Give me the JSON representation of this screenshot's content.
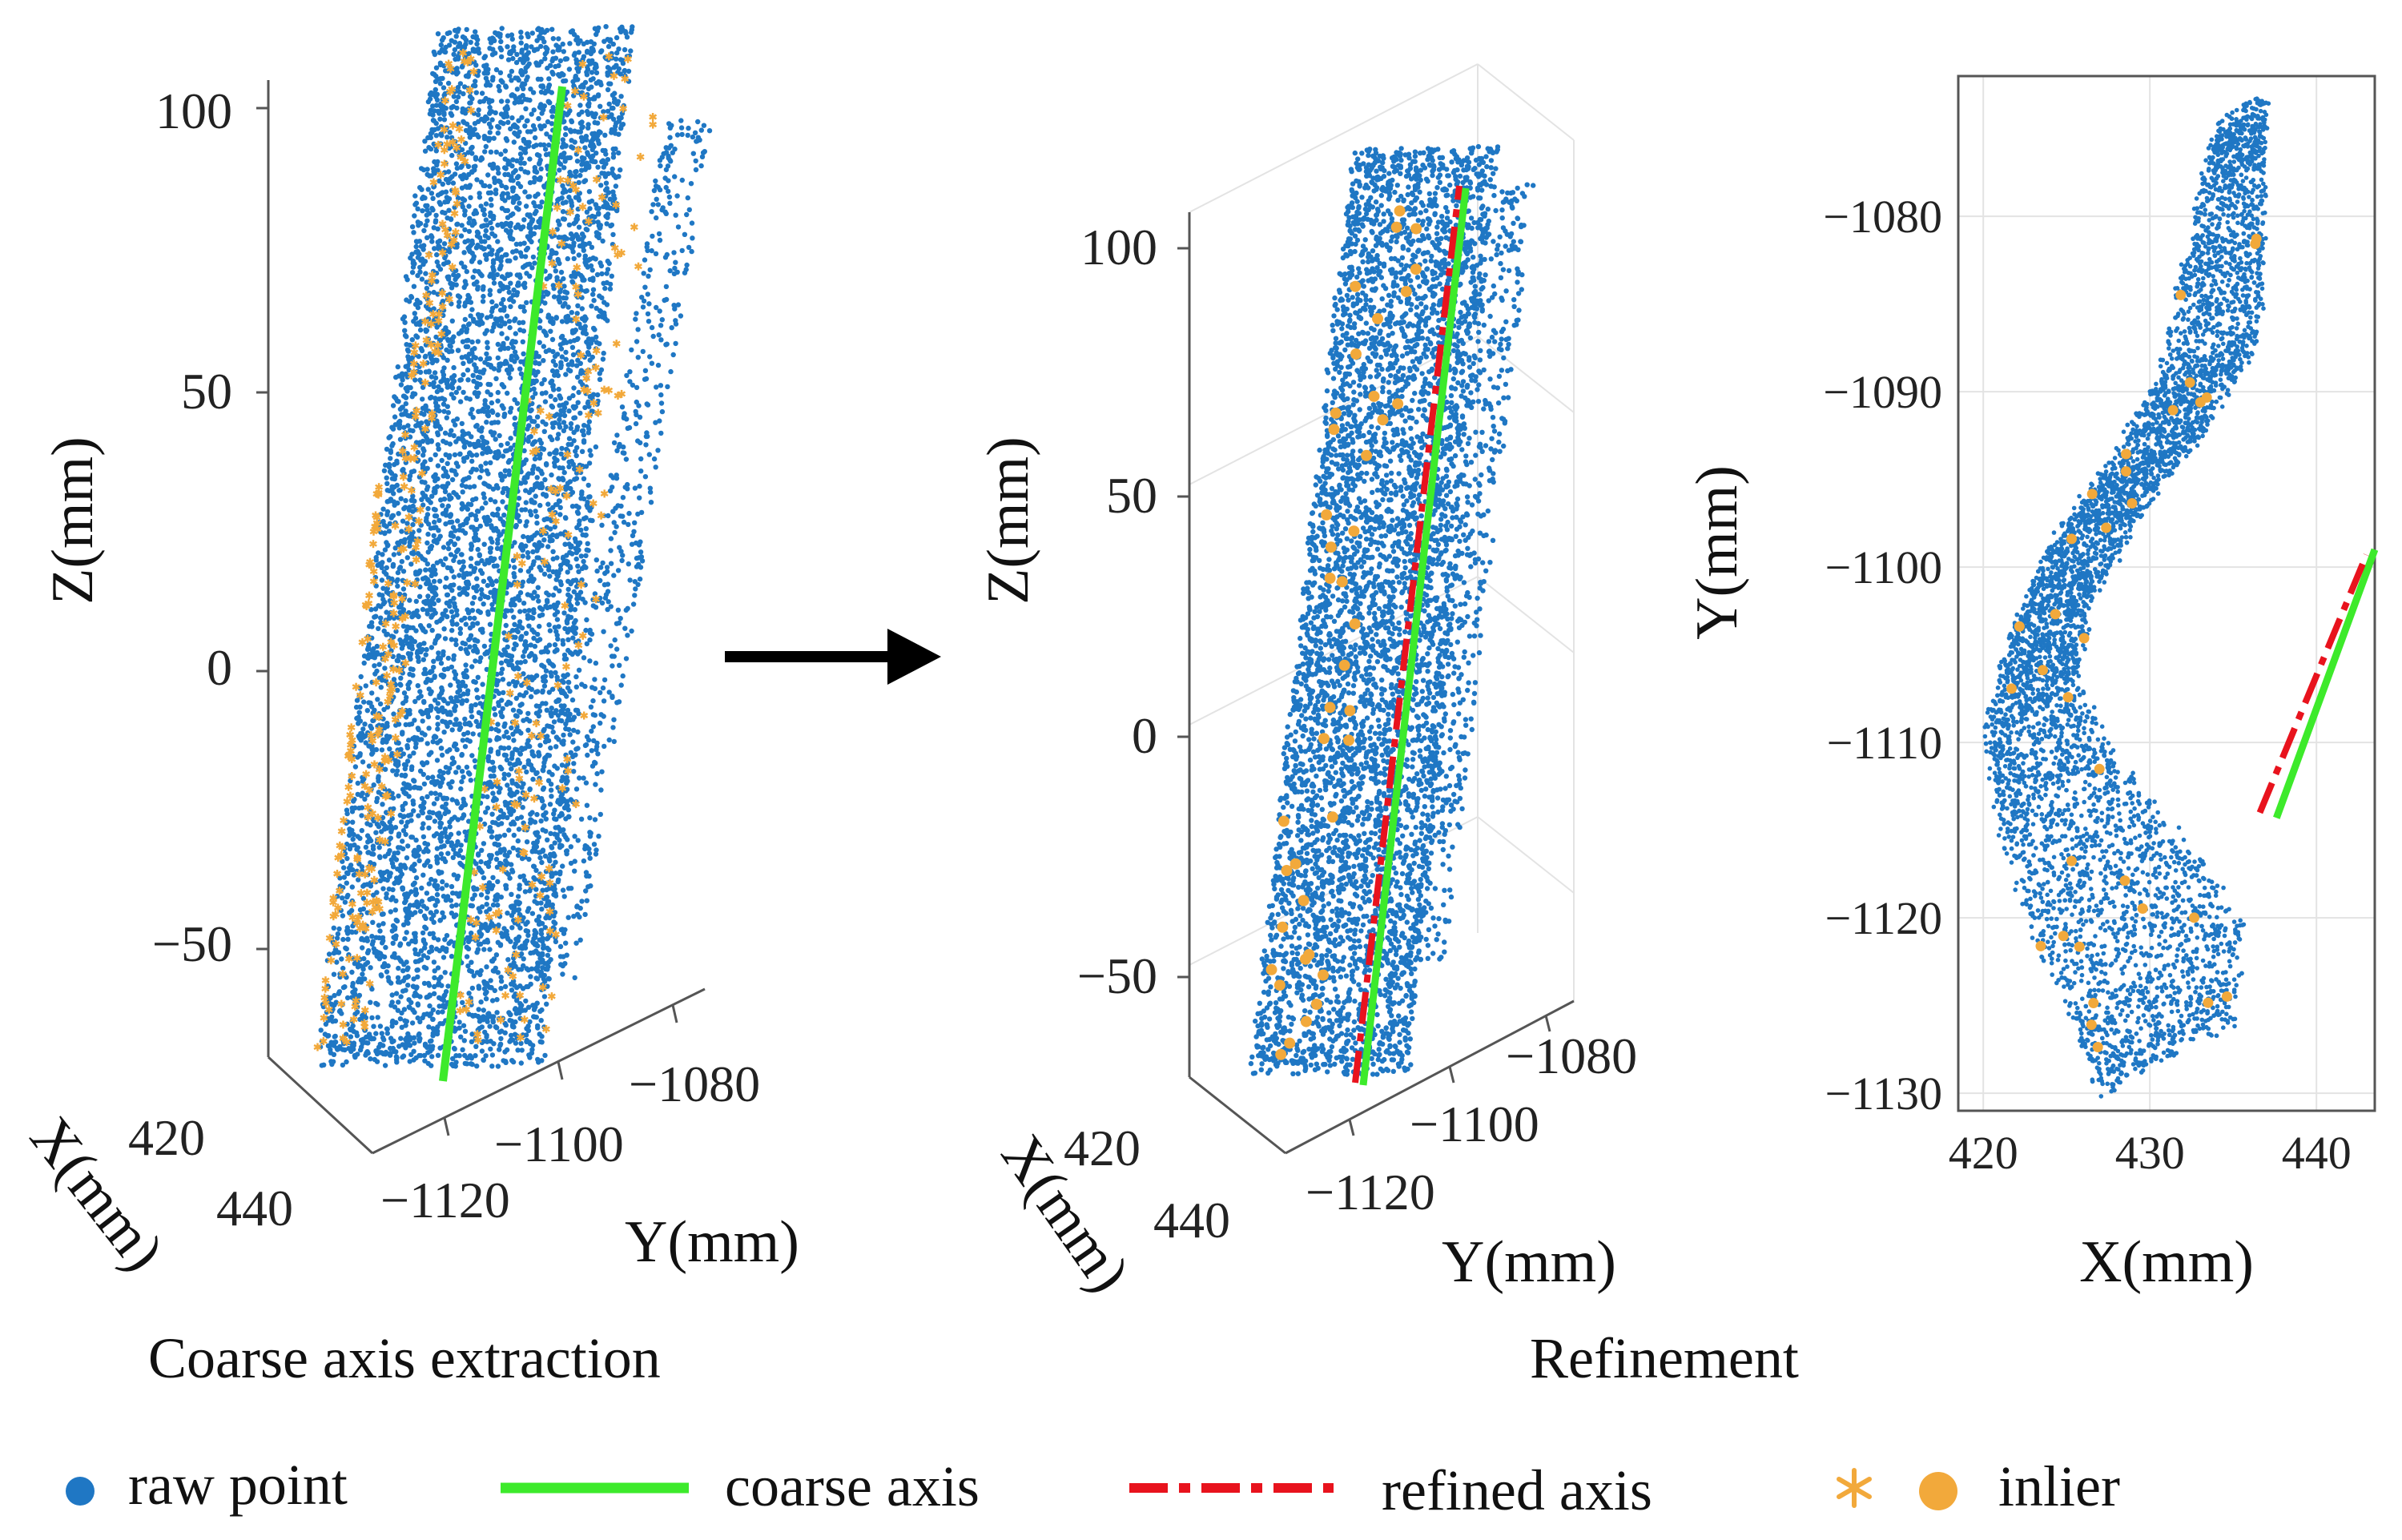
{
  "colors": {
    "raw": "#1f77c4",
    "inlier": "#f2a93b",
    "coarse": "#3dea2b",
    "refined": "#e8131d"
  },
  "captions": {
    "left": "Coarse axis extraction",
    "right": "Refinement"
  },
  "legend": {
    "raw": "raw point",
    "coarse": "coarse axis",
    "refined": "refined axis",
    "inlier": "inlier"
  },
  "chart_data": [
    {
      "type": "scatter",
      "view": "3d",
      "xlabel": "X(mm)",
      "ylabel": "Y(mm)",
      "zlabel": "Z(mm)",
      "x_ticks": [
        "420",
        "440"
      ],
      "y_ticks": [
        "−1120",
        "−1100",
        "−1080"
      ],
      "z_ticks": [
        "100",
        "50",
        "0",
        "−50"
      ],
      "zlim": [
        -70,
        120
      ],
      "series": [
        {
          "name": "raw point",
          "marker": "dot"
        },
        {
          "name": "inlier",
          "marker": "asterisk"
        },
        {
          "name": "coarse axis",
          "style": "solid line"
        }
      ]
    },
    {
      "type": "scatter",
      "view": "3d",
      "xlabel": "X(mm)",
      "ylabel": "Y(mm)",
      "zlabel": "Z(mm)",
      "x_ticks": [
        "420",
        "440"
      ],
      "y_ticks": [
        "−1120",
        "−1100",
        "−1080"
      ],
      "z_ticks": [
        "100",
        "50",
        "0",
        "−50"
      ],
      "zlim": [
        -70,
        120
      ],
      "series": [
        {
          "name": "raw point",
          "marker": "dot"
        },
        {
          "name": "inlier",
          "marker": "filled circle"
        },
        {
          "name": "coarse axis",
          "style": "solid line"
        },
        {
          "name": "refined axis",
          "style": "dash-dot line"
        }
      ]
    },
    {
      "type": "scatter",
      "view": "top (XY projection)",
      "xlabel": "X(mm)",
      "ylabel": "Y(mm)",
      "xlim": [
        418.5,
        443.5
      ],
      "ylim": [
        -1131,
        -1072
      ],
      "x_ticks": [
        "420",
        "430",
        "440"
      ],
      "y_ticks": [
        "−1080",
        "−1090",
        "−1100",
        "−1110",
        "−1120",
        "−1130"
      ],
      "grid": true,
      "series": [
        {
          "name": "raw point",
          "marker": "dot"
        },
        {
          "name": "inlier",
          "marker": "filled circle"
        },
        {
          "name": "coarse axis",
          "x": [
            437.6,
            443.5
          ],
          "y": [
            -1114.3,
            -1099.0
          ]
        },
        {
          "name": "refined axis",
          "x": [
            436.6,
            443.0
          ],
          "y": [
            -1114.0,
            -1099.3
          ]
        }
      ]
    }
  ]
}
